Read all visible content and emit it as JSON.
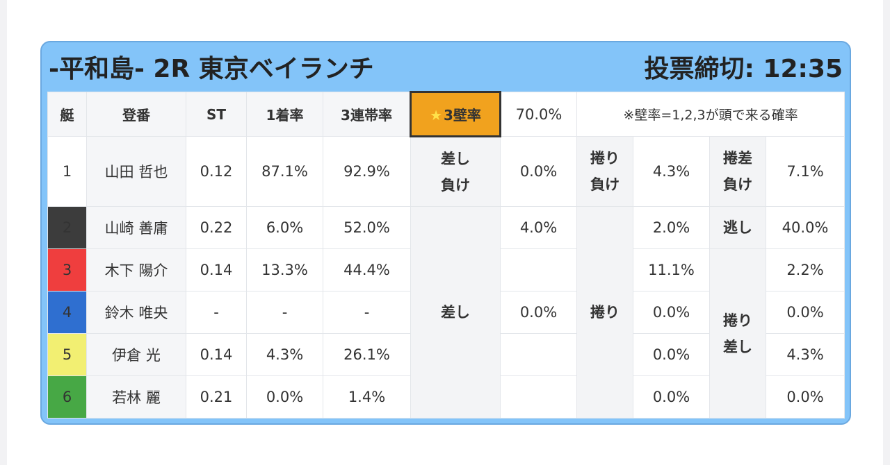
{
  "header": {
    "title": "-平和島- 2R 東京ベイランチ",
    "deadline": "投票締切: 12:35"
  },
  "columns": {
    "boat": "艇",
    "name": "登番",
    "st": "ST",
    "first_rate": "1着率",
    "trio_rate": "3連帯率",
    "wall_star": "★",
    "wall_label": "3壁率",
    "wall_value": "70.0%",
    "note": "※壁率=1,2,3が頭で来る確率"
  },
  "labels": {
    "sashi_make": "差し負け",
    "makuri_make": "捲り負け",
    "makurizashi_make": "捲差負け",
    "nige": "逃し",
    "sashi": "差し",
    "makuri": "捲り",
    "makuri_sashi": "捲り差し"
  },
  "rows": [
    {
      "boat": "1",
      "name": "山田 哲也",
      "st": "0.12",
      "first": "87.1%",
      "trio": "92.9%",
      "c1": "0.0%",
      "c2": "4.3%",
      "c3": "7.1%",
      "color": "#ffffff"
    },
    {
      "boat": "2",
      "name": "山崎 善庸",
      "st": "0.22",
      "first": "6.0%",
      "trio": "52.0%",
      "c1": "4.0%",
      "c2": "2.0%",
      "c3": "40.0%",
      "color": "#3c3c3c"
    },
    {
      "boat": "3",
      "name": "木下 陽介",
      "st": "0.14",
      "first": "13.3%",
      "trio": "44.4%",
      "c1": "",
      "c2": "11.1%",
      "c3": "2.2%",
      "color": "#ef3e3e"
    },
    {
      "boat": "4",
      "name": "鈴木 唯央",
      "st": "-",
      "first": "-",
      "trio": "-",
      "c1": "0.0%",
      "c2": "0.0%",
      "c3": "0.0%",
      "color": "#2f6fd0"
    },
    {
      "boat": "5",
      "name": "伊倉 光",
      "st": "0.14",
      "first": "4.3%",
      "trio": "26.1%",
      "c1": "",
      "c2": "0.0%",
      "c3": "4.3%",
      "color": "#f2ef72"
    },
    {
      "boat": "6",
      "name": "若林 麗",
      "st": "0.21",
      "first": "0.0%",
      "trio": "1.4%",
      "c1": "",
      "c2": "0.0%",
      "c3": "0.0%",
      "color": "#47a845"
    }
  ]
}
